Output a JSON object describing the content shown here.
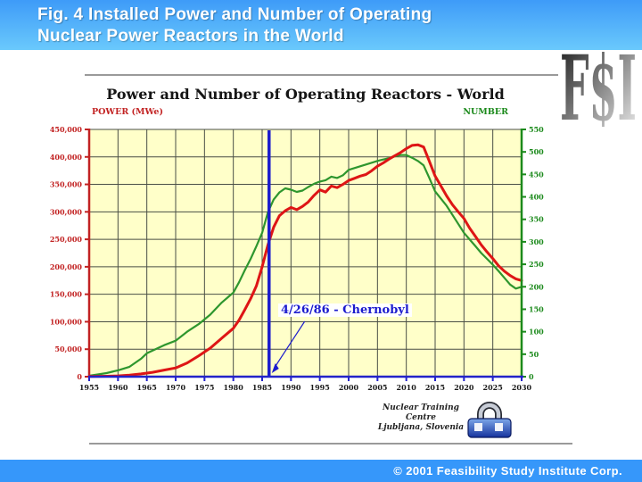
{
  "slide": {
    "header": {
      "title_line1": "Fig. 4   Installed Power and Number of Operating",
      "title_line2": "Nuclear Power Reactors in the World"
    },
    "fsi_logo_text": "F$I",
    "credit": {
      "line1": "Nuclear Training Centre",
      "line2": "Ljubljana, Slovenia"
    },
    "footer_text": "© 2001 Feasibility Study Institute Corp.",
    "colors": {
      "header_top": "#3e9bf8",
      "header_bottom": "#6ac9fc",
      "footer_bg": "#3697fa"
    }
  },
  "chart_data": {
    "type": "line",
    "title": "Power and Number of Operating Reactors - World",
    "plot_bg": "#ffffc9",
    "grid_color": "#4a4f46",
    "legend": "none",
    "x_axis": {
      "min": 1955,
      "max": 2030,
      "tick_step": 5,
      "ticks": [
        1955,
        1960,
        1965,
        1970,
        1975,
        1980,
        1985,
        1990,
        1995,
        2000,
        2005,
        2010,
        2015,
        2020,
        2025,
        2030
      ],
      "color": "#2323c8",
      "label_color": "#1a1a1a"
    },
    "left_axis": {
      "label": "POWER (MWe)",
      "color": "#c22222",
      "min": 0,
      "max": 450000,
      "tick_values": [
        0,
        50000,
        100000,
        150000,
        200000,
        250000,
        300000,
        350000,
        400000,
        450000
      ],
      "tick_labels": [
        "0",
        "50,000",
        "100,000",
        "150,000",
        "200,000",
        "250,000",
        "300,000",
        "350,000",
        "400,000",
        "450,000"
      ]
    },
    "right_axis": {
      "label": "NUMBER",
      "color": "#1c8a1c",
      "min": 0,
      "max": 550,
      "tick_values": [
        0,
        50,
        100,
        150,
        200,
        250,
        300,
        350,
        400,
        450,
        500,
        550
      ],
      "tick_labels": [
        "0",
        "50",
        "100",
        "150",
        "200",
        "250",
        "300",
        "350",
        "400",
        "450",
        "500",
        "550"
      ]
    },
    "series": [
      {
        "name": "Installed power",
        "unit": "MWe",
        "axis": "left",
        "color": "#de1515",
        "points": [
          [
            1955,
            300
          ],
          [
            1958,
            800
          ],
          [
            1960,
            1500
          ],
          [
            1962,
            3000
          ],
          [
            1964,
            5000
          ],
          [
            1966,
            8000
          ],
          [
            1968,
            12000
          ],
          [
            1970,
            16000
          ],
          [
            1972,
            25000
          ],
          [
            1974,
            38000
          ],
          [
            1976,
            52000
          ],
          [
            1978,
            70000
          ],
          [
            1980,
            88000
          ],
          [
            1981,
            103000
          ],
          [
            1982,
            122000
          ],
          [
            1983,
            142000
          ],
          [
            1984,
            165000
          ],
          [
            1985,
            200000
          ],
          [
            1986,
            240000
          ],
          [
            1987,
            272000
          ],
          [
            1988,
            293000
          ],
          [
            1989,
            302000
          ],
          [
            1990,
            308000
          ],
          [
            1991,
            304000
          ],
          [
            1992,
            310000
          ],
          [
            1993,
            318000
          ],
          [
            1994,
            330000
          ],
          [
            1995,
            340000
          ],
          [
            1996,
            336000
          ],
          [
            1997,
            347000
          ],
          [
            1998,
            344000
          ],
          [
            1999,
            350000
          ],
          [
            2000,
            357000
          ],
          [
            2001,
            361000
          ],
          [
            2002,
            365000
          ],
          [
            2003,
            368000
          ],
          [
            2004,
            375000
          ],
          [
            2005,
            383000
          ],
          [
            2006,
            389000
          ],
          [
            2007,
            396000
          ],
          [
            2008,
            402000
          ],
          [
            2009,
            408000
          ],
          [
            2010,
            415000
          ],
          [
            2011,
            421000
          ],
          [
            2012,
            422000
          ],
          [
            2013,
            418000
          ],
          [
            2014,
            392000
          ],
          [
            2015,
            365000
          ],
          [
            2016,
            347000
          ],
          [
            2017,
            329000
          ],
          [
            2018,
            313000
          ],
          [
            2019,
            300000
          ],
          [
            2020,
            288000
          ],
          [
            2021,
            270000
          ],
          [
            2022,
            255000
          ],
          [
            2023,
            240000
          ],
          [
            2024,
            227000
          ],
          [
            2025,
            215000
          ],
          [
            2026,
            202000
          ],
          [
            2027,
            192000
          ],
          [
            2028,
            184000
          ],
          [
            2029,
            178000
          ],
          [
            2030,
            175000
          ]
        ]
      },
      {
        "name": "Number of operating reactors",
        "unit": "reactors",
        "axis": "right",
        "color": "#2e962e",
        "points": [
          [
            1955,
            2
          ],
          [
            1958,
            8
          ],
          [
            1960,
            14
          ],
          [
            1962,
            22
          ],
          [
            1964,
            40
          ],
          [
            1965,
            52
          ],
          [
            1967,
            64
          ],
          [
            1968,
            70
          ],
          [
            1970,
            80
          ],
          [
            1972,
            100
          ],
          [
            1974,
            117
          ],
          [
            1976,
            138
          ],
          [
            1978,
            165
          ],
          [
            1980,
            187
          ],
          [
            1981,
            210
          ],
          [
            1982,
            237
          ],
          [
            1983,
            262
          ],
          [
            1984,
            290
          ],
          [
            1985,
            320
          ],
          [
            1986,
            366
          ],
          [
            1987,
            394
          ],
          [
            1988,
            410
          ],
          [
            1989,
            419
          ],
          [
            1990,
            416
          ],
          [
            1991,
            411
          ],
          [
            1992,
            414
          ],
          [
            1993,
            422
          ],
          [
            1994,
            429
          ],
          [
            1995,
            434
          ],
          [
            1996,
            437
          ],
          [
            1997,
            445
          ],
          [
            1998,
            442
          ],
          [
            1999,
            448
          ],
          [
            2000,
            460
          ],
          [
            2001,
            464
          ],
          [
            2002,
            468
          ],
          [
            2003,
            472
          ],
          [
            2004,
            476
          ],
          [
            2005,
            480
          ],
          [
            2006,
            483
          ],
          [
            2007,
            486
          ],
          [
            2008,
            490
          ],
          [
            2009,
            493
          ],
          [
            2010,
            493
          ],
          [
            2011,
            487
          ],
          [
            2012,
            480
          ],
          [
            2013,
            470
          ],
          [
            2014,
            442
          ],
          [
            2015,
            412
          ],
          [
            2016,
            396
          ],
          [
            2017,
            380
          ],
          [
            2018,
            360
          ],
          [
            2019,
            340
          ],
          [
            2020,
            320
          ],
          [
            2021,
            305
          ],
          [
            2022,
            290
          ],
          [
            2023,
            275
          ],
          [
            2024,
            262
          ],
          [
            2025,
            249
          ],
          [
            2026,
            235
          ],
          [
            2027,
            220
          ],
          [
            2028,
            205
          ],
          [
            2029,
            196
          ],
          [
            2030,
            200
          ]
        ]
      }
    ],
    "annotation": {
      "text": "4/26/86 - Chernobyl",
      "x": 1986.2,
      "line_color": "#1c1ccd",
      "text_color": "#1c1ccd"
    }
  }
}
